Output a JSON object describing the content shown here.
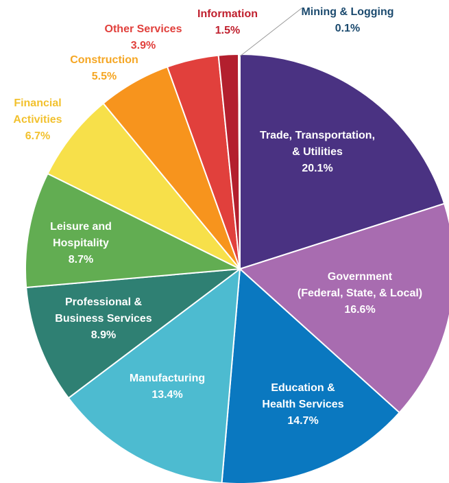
{
  "chart_data": {
    "type": "pie",
    "categories": [
      "Trade, Transportation,\n& Utilities",
      "Government\n(Federal, State, & Local)",
      "Education &\nHealth Services",
      "Manufacturing",
      "Professional &\nBusiness Services",
      "Leisure and\nHospitality",
      "Financial\nActivities",
      "Construction",
      "Other Services",
      "Information",
      "Mining & Logging"
    ],
    "values": [
      20.1,
      16.6,
      14.7,
      13.4,
      8.9,
      8.7,
      6.7,
      5.5,
      3.9,
      1.5,
      0.1
    ],
    "value_labels": [
      "20.1%",
      "16.6%",
      "14.7%",
      "13.4%",
      "8.9%",
      "8.7%",
      "6.7%",
      "5.5%",
      "3.9%",
      "1.5%",
      "0.1%"
    ],
    "colors": [
      "#4a3282",
      "#a86cb0",
      "#0a78c0",
      "#4dbbd0",
      "#2f8073",
      "#62ad52",
      "#f7e04a",
      "#f7941d",
      "#e1403c",
      "#b31f2e",
      "#1e3a6e"
    ]
  }
}
